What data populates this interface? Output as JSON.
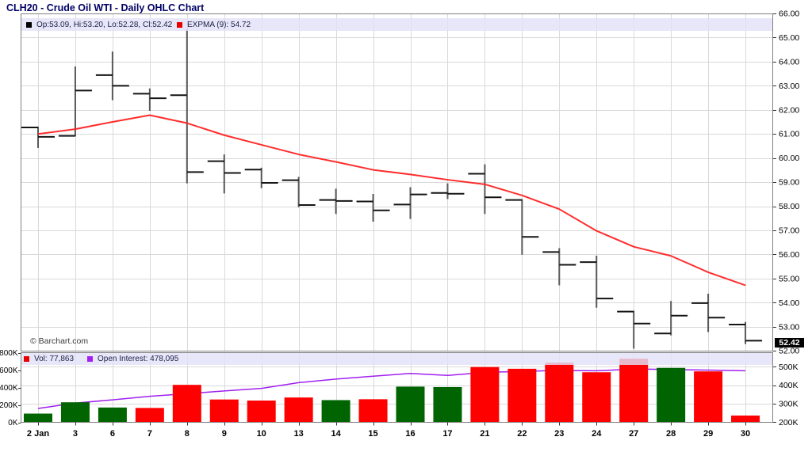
{
  "title": "CLH20 - Crude Oil WTI - Daily OHLC Chart",
  "watermark": "© Barchart.com",
  "last_price_label": "52.42",
  "legends": {
    "ohlc": "Op:53.09, Hi:53.20, Lo:52.28, Cl:52.42",
    "expma": "EXPMA (9): 54.72",
    "volume": "Vol: 77,863",
    "open_interest": "Open Interest: 478,095"
  },
  "colors": {
    "title": "#000066",
    "expma_line": "#ff2222",
    "open_interest_line": "#a020f0",
    "volume_up": "#006400",
    "volume_down": "#fe0000",
    "ohlc_bar": "#595959",
    "ohlc_tick": "#141414",
    "grid": "#d9d9d9",
    "border": "#808080",
    "legend_bg": "#e2e2f8"
  },
  "axes": {
    "price_ticks": [
      {
        "label": "66.00",
        "value": 66
      },
      {
        "label": "65.00",
        "value": 65
      },
      {
        "label": "64.00",
        "value": 64
      },
      {
        "label": "63.00",
        "value": 63
      },
      {
        "label": "62.00",
        "value": 62
      },
      {
        "label": "61.00",
        "value": 61
      },
      {
        "label": "60.00",
        "value": 60
      },
      {
        "label": "59.00",
        "value": 59
      },
      {
        "label": "58.00",
        "value": 58
      },
      {
        "label": "57.00",
        "value": 57
      },
      {
        "label": "56.00",
        "value": 56
      },
      {
        "label": "55.00",
        "value": 55
      },
      {
        "label": "54.00",
        "value": 54
      },
      {
        "label": "53.00",
        "value": 53
      },
      {
        "label": "52.00",
        "value": 52
      }
    ],
    "volume_left_ticks": [
      {
        "label": "800K",
        "k": 800
      },
      {
        "label": "600K",
        "k": 600
      },
      {
        "label": "400K",
        "k": 400
      },
      {
        "label": "200K",
        "k": 200
      },
      {
        "label": "0K",
        "k": 0
      }
    ],
    "volume_right_ticks": [
      {
        "label": "500K",
        "k": 500
      },
      {
        "label": "400K",
        "k": 400
      },
      {
        "label": "300K",
        "k": 300
      },
      {
        "label": "200K",
        "k": 200
      }
    ],
    "x_labels": [
      "2 Jan",
      "3",
      "6",
      "7",
      "8",
      "9",
      "10",
      "13",
      "14",
      "15",
      "16",
      "17",
      "21",
      "22",
      "23",
      "24",
      "27",
      "28",
      "29",
      "30"
    ]
  },
  "chart_data": [
    {
      "type": "ohlc",
      "title": "CLH20 - Crude Oil WTI - Daily OHLC Chart",
      "x": [
        "2 Jan",
        "3",
        "6",
        "7",
        "8",
        "9",
        "10",
        "13",
        "14",
        "15",
        "16",
        "17",
        "21",
        "22",
        "23",
        "24",
        "27",
        "28",
        "29",
        "30"
      ],
      "open": [
        61.27,
        60.92,
        63.44,
        62.67,
        62.61,
        59.87,
        59.52,
        59.08,
        58.26,
        58.2,
        58.07,
        58.55,
        59.35,
        58.26,
        56.1,
        55.68,
        53.63,
        52.72,
        53.98,
        53.09
      ],
      "high": [
        61.3,
        63.8,
        64.42,
        62.89,
        65.35,
        60.15,
        59.6,
        59.22,
        58.73,
        58.51,
        58.79,
        58.95,
        59.74,
        58.29,
        56.26,
        55.95,
        53.66,
        54.07,
        54.37,
        53.2
      ],
      "low": [
        60.42,
        60.9,
        62.4,
        61.96,
        58.95,
        58.53,
        58.75,
        57.96,
        57.68,
        57.36,
        57.47,
        58.3,
        57.68,
        55.99,
        54.72,
        53.79,
        52.09,
        52.64,
        52.78,
        52.28
      ],
      "close": [
        60.88,
        62.8,
        63.0,
        62.48,
        59.42,
        59.38,
        58.97,
        58.05,
        58.22,
        57.83,
        58.49,
        58.52,
        58.37,
        56.73,
        55.57,
        54.17,
        53.13,
        53.46,
        53.38,
        52.42
      ],
      "expma9": [
        61.0,
        61.2,
        61.5,
        61.78,
        61.45,
        60.95,
        60.55,
        60.15,
        59.84,
        59.51,
        59.32,
        59.1,
        58.91,
        58.45,
        57.88,
        56.98,
        56.32,
        55.94,
        55.26,
        54.72
      ],
      "ylim": [
        52,
        66
      ],
      "grid": true,
      "legend_position": "top"
    },
    {
      "type": "bar",
      "volume_k": [
        100,
        230,
        170,
        165,
        430,
        262,
        250,
        285,
        255,
        265,
        410,
        405,
        635,
        615,
        685,
        575,
        730,
        625,
        585,
        78
      ],
      "open_interest_k": [
        274,
        303,
        321,
        340,
        354,
        369,
        383,
        414,
        433,
        449,
        464,
        453,
        469,
        475,
        480,
        478,
        488,
        485,
        482,
        478
      ],
      "left_ylim_k": [
        0,
        800
      ],
      "right_ylim_k": [
        200,
        583
      ],
      "last_volume": "77,863",
      "last_open_interest": "478,095"
    }
  ]
}
